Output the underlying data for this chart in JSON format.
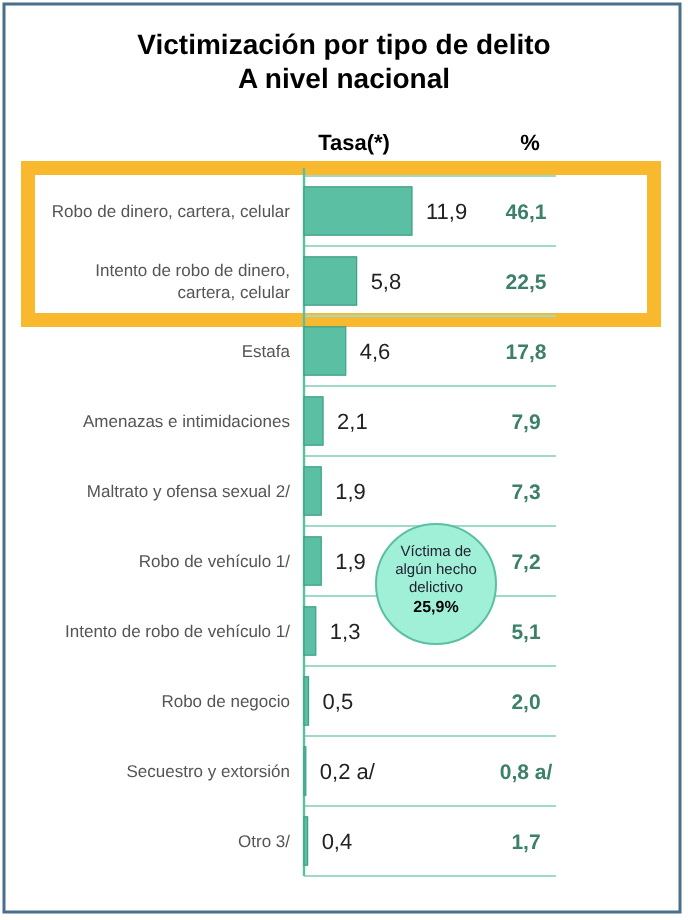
{
  "chart_data": {
    "type": "bar",
    "orientation": "horizontal",
    "title": "Victimización por tipo de delito\nA nivel nacional",
    "xlabel": "Tasa(*)",
    "categories": [
      "Robo de dinero, cartera, celular",
      "Intento de robo de dinero, cartera, celular",
      "Estafa",
      "Amenazas e intimidaciones",
      "Maltrato y ofensa sexual 2/",
      "Robo de vehículo 1/",
      "Intento de robo de vehículo 1/",
      "Robo de negocio",
      "Secuestro y extorsión",
      "Otro 3/"
    ],
    "values": [
      11.9,
      5.8,
      4.6,
      2.1,
      1.9,
      1.9,
      1.3,
      0.5,
      0.2,
      0.4
    ],
    "value_labels": [
      "11,9",
      "5,8",
      "4,6",
      "2,1",
      "1,9",
      "1,9",
      "1,3",
      "0,5",
      "0,2 a/",
      "0,4"
    ],
    "color": "#5bbfa3",
    "annotations": [
      "%",
      "46,1",
      "22,5",
      "17,8",
      "7,9",
      "7,3",
      "7,2",
      "5,1",
      "2,0",
      "0,8 a/",
      "1,7",
      "Víctima de algún hecho delictivo",
      "25,9%"
    ]
  }
}
